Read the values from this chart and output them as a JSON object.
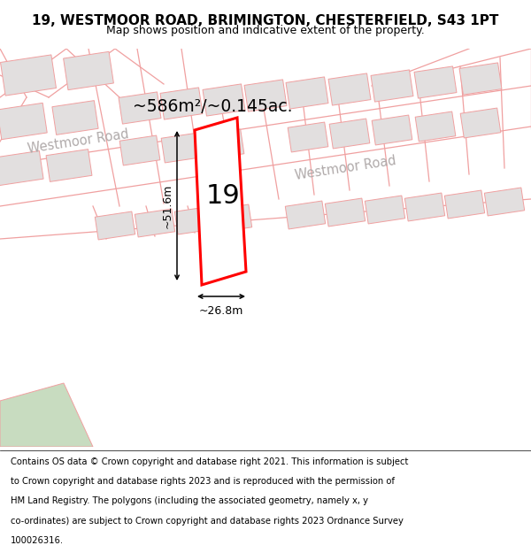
{
  "title": "19, WESTMOOR ROAD, BRIMINGTON, CHESTERFIELD, S43 1PT",
  "subtitle": "Map shows position and indicative extent of the property.",
  "footer_lines": [
    "Contains OS data © Crown copyright and database right 2021. This information is subject",
    "to Crown copyright and database rights 2023 and is reproduced with the permission of",
    "HM Land Registry. The polygons (including the associated geometry, namely x, y",
    "co-ordinates) are subject to Crown copyright and database rights 2023 Ordnance Survey",
    "100026316."
  ],
  "area_text": "~586m²/~0.145ac.",
  "label_19": "19",
  "dim_width": "~26.8m",
  "dim_height": "~51.6m",
  "road_label1": "Westmoor Road",
  "road_label2": "Westmoor Road",
  "map_bg": "#efedec",
  "building_fill": "#e2dfdf",
  "building_edge": "#f0a0a0",
  "road_color": "#f0a0a0",
  "highlight_fill": "#ffffff",
  "highlight_edge": "#ff0000",
  "green_fill": "#c8dcc0",
  "title_fontsize": 11,
  "subtitle_fontsize": 9,
  "footer_fontsize": 7.2
}
